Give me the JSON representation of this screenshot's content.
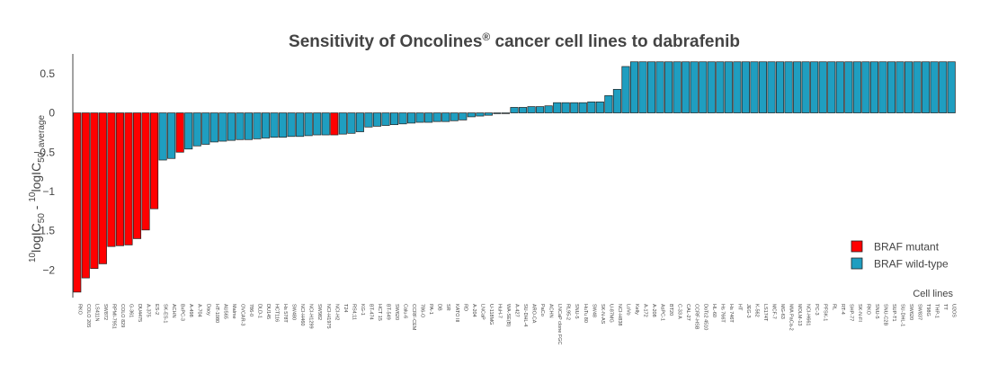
{
  "chart_data": {
    "type": "bar",
    "title": "Sensitivity of Oncolines® cancer cell lines to dabrafenib",
    "ylabel": "10logIC50 - 10logIC50, average",
    "xlabel": "Cell lines",
    "ylim": [
      -2.35,
      0.75
    ],
    "yticks": [
      -2,
      -1.5,
      -1,
      -0.5,
      0,
      0.5
    ],
    "grid": false,
    "legend_position": "bottom-right",
    "colors": {
      "mutant": "#ff0000",
      "wild_type": "#1f9ec0",
      "outline": "#222222"
    },
    "series": [
      {
        "name": "BRAF mutant",
        "key": "mutant"
      },
      {
        "name": "BRAF wild-type",
        "key": "wild_type"
      }
    ],
    "categories": [
      "RKO",
      "COLO 205",
      "LS411N",
      "SW872",
      "RPMI-7951",
      "COLO 829",
      "G-361",
      "DU4475",
      "A-375",
      "ES-2",
      "SK-ES-1",
      "ACHN",
      "BxPC-3",
      "A-498",
      "A-704",
      "Daoy",
      "HT-1080",
      "AU565",
      "Malme",
      "OVCAR-3",
      "786-0",
      "DLD-1",
      "DU145",
      "HCT116",
      "Hs 578T",
      "SW480",
      "NCI-H460",
      "NCI-H1299",
      "SW982",
      "NCI-H1975",
      "NCI-H2",
      "T24",
      "RS4;11",
      "KG-1",
      "BT-474",
      "HCT 15",
      "BT-549",
      "SW620",
      "Calu-6",
      "CCRF-CEM",
      "786-O",
      "PA-1",
      "DB",
      "SR",
      "KATO III",
      "RD",
      "A-204",
      "LNCaP",
      "U-118MG",
      "HuH-7",
      "WA-SE(B)",
      "A-427",
      "SU-DHL-4",
      "ARO-CA",
      "PaCo",
      "ACHN",
      "LNCaP clone FGC",
      "RL95-2",
      "SNU-5",
      "HuTu 80",
      "SW48",
      "SK-N-AS",
      "U-87MG",
      "NCI-H838",
      "LoVo",
      "Kelly",
      "A-172",
      "A-208",
      "AsPC-1",
      "BT20",
      "C-33 A",
      "CAL-27",
      "CCRF-HSB",
      "DoTc2 4510",
      "HL-60",
      "Hs 766T",
      "Hs 746T",
      "HT",
      "JEG-3",
      "K-562",
      "LS174T",
      "MCF-7",
      "MG-63",
      "MIA PaCa-2",
      "MOLM-13",
      "NCI-H661",
      "PC-3",
      "PFSK-1",
      "RL",
      "RT-4",
      "SHP-77",
      "SK-N-FI",
      "RKO",
      "SNU-5",
      "SNU-C2B",
      "SUP-T1",
      "SU-DHL-1",
      "SW620",
      "SW837",
      "T98G",
      "THP-1",
      "TT",
      "U2OS"
    ],
    "values": [
      -2.28,
      -2.1,
      -1.98,
      -1.92,
      -1.7,
      -1.69,
      -1.68,
      -1.6,
      -1.49,
      -1.22,
      -0.6,
      -0.58,
      -0.5,
      -0.46,
      -0.42,
      -0.4,
      -0.37,
      -0.36,
      -0.35,
      -0.34,
      -0.34,
      -0.33,
      -0.32,
      -0.31,
      -0.31,
      -0.3,
      -0.3,
      -0.29,
      -0.28,
      -0.28,
      -0.28,
      -0.27,
      -0.26,
      -0.24,
      -0.18,
      -0.17,
      -0.16,
      -0.15,
      -0.14,
      -0.13,
      -0.12,
      -0.12,
      -0.11,
      -0.11,
      -0.1,
      -0.09,
      -0.05,
      -0.04,
      -0.03,
      -0.01,
      0.0,
      0.07,
      0.07,
      0.08,
      0.08,
      0.09,
      0.13,
      0.13,
      0.13,
      0.13,
      0.14,
      0.14,
      0.22,
      0.3,
      0.59,
      0.65,
      0.65,
      0.65,
      0.65,
      0.65,
      0.65,
      0.65,
      0.65,
      0.65,
      0.65,
      0.65,
      0.65,
      0.65,
      0.65,
      0.65,
      0.65,
      0.65,
      0.65,
      0.65,
      0.65,
      0.65,
      0.65,
      0.65,
      0.65,
      0.65,
      0.65,
      0.65,
      0.65,
      0.65,
      0.65,
      0.65,
      0.65,
      0.65,
      0.65,
      0.65,
      0.65,
      0.65,
      0.65
    ],
    "mutant_indices": [
      0,
      1,
      2,
      3,
      4,
      5,
      6,
      7,
      8,
      9,
      12,
      30
    ]
  }
}
